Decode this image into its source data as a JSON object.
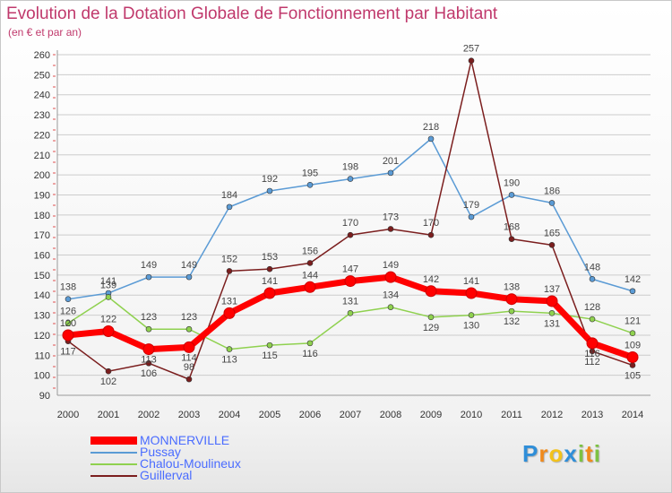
{
  "title": "Evolution de la Dotation Globale de Fonctionnement par Habitant",
  "subtitle": "(en € et par an)",
  "logo": {
    "text": "Proxiti"
  },
  "colors": {
    "MONNERVILLE": "#ff0000",
    "Pussay": "#5b9bd5",
    "Chalou-Moulineux": "#8fd14f",
    "Guillerval": "#7b1e1e",
    "legend_text": "#4a6cff",
    "grid": "#cccccc"
  },
  "chart_data": {
    "type": "line",
    "title": "Evolution de la Dotation Globale de Fonctionnement par Habitant",
    "subtitle": "(en € et par an)",
    "xlabel": "",
    "ylabel": "",
    "x": [
      2000,
      2001,
      2002,
      2003,
      2004,
      2005,
      2006,
      2007,
      2008,
      2009,
      2010,
      2011,
      2012,
      2013,
      2014
    ],
    "ylim": [
      90,
      260
    ],
    "yticks": [
      90,
      100,
      110,
      120,
      130,
      140,
      150,
      160,
      170,
      180,
      190,
      200,
      210,
      220,
      230,
      240,
      250,
      260
    ],
    "grid": "horizontal",
    "legend_position": "bottom-left",
    "series": [
      {
        "name": "MONNERVILLE",
        "values": [
          120,
          122,
          113,
          114,
          131,
          141,
          144,
          147,
          149,
          142,
          141,
          138,
          137,
          116,
          109
        ]
      },
      {
        "name": "Pussay",
        "values": [
          138,
          141,
          149,
          149,
          184,
          192,
          195,
          198,
          201,
          218,
          179,
          190,
          186,
          148,
          142
        ]
      },
      {
        "name": "Chalou-Moulineux",
        "values": [
          126,
          139,
          123,
          123,
          113,
          115,
          116,
          131,
          134,
          129,
          130,
          132,
          131,
          128,
          121
        ]
      },
      {
        "name": "Guillerval",
        "values": [
          117,
          102,
          106,
          98,
          152,
          153,
          156,
          170,
          173,
          170,
          257,
          168,
          165,
          112,
          105
        ]
      }
    ]
  }
}
